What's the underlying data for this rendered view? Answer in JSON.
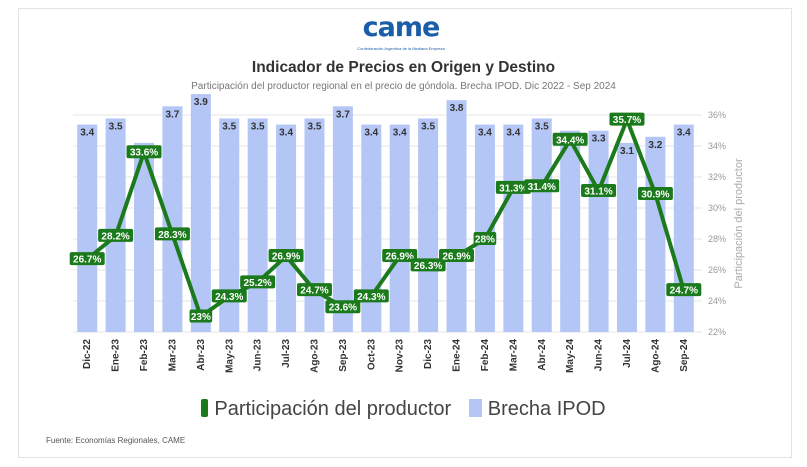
{
  "logo": {
    "text": "came",
    "subtext": "Confederación Argentina de la Mediana Empresa"
  },
  "header": {
    "title": "Indicador de Precios en Origen y Destino",
    "subtitle": "Participación del productor regional en el precio de góndola. Brecha IPOD. Dic 2022 - Sep 2024"
  },
  "legend": {
    "line_label": "Participación del productor",
    "bar_label": "Brecha IPOD"
  },
  "footer": {
    "source": "Fuente: Economías Regionales, CAME"
  },
  "colors": {
    "bar": "#b3c6f5",
    "line": "#1b7a1b",
    "label_bg": "#1b7a1b",
    "label_text": "#ffffff"
  },
  "chart_data": {
    "type": "bar+line",
    "categories": [
      "Dic-22",
      "Ene-23",
      "Feb-23",
      "Mar-23",
      "Abr-23",
      "May-23",
      "Jun-23",
      "Jul-23",
      "Ago-23",
      "Sep-23",
      "Oct-23",
      "Nov-23",
      "Dic-23",
      "Ene-24",
      "Feb-24",
      "Mar-24",
      "Abr-24",
      "May-24",
      "Jun-24",
      "Jul-24",
      "Ago-24",
      "Sep-24"
    ],
    "series": [
      {
        "name": "Brecha IPOD",
        "type": "bar",
        "axis": "left",
        "values": [
          3.4,
          3.5,
          3.1,
          3.7,
          3.9,
          3.5,
          3.5,
          3.4,
          3.5,
          3.7,
          3.4,
          3.4,
          3.5,
          3.8,
          3.4,
          3.4,
          3.5,
          3.3,
          3.3,
          3.1,
          3.2,
          3.4
        ],
        "labels": [
          "3.4",
          "3.5",
          "3.1",
          "3.7",
          "3.9",
          "3.5",
          "3.5",
          "3.4",
          "3.5",
          "3.7",
          "3.4",
          "3.4",
          "3.5",
          "3.8",
          "3.4",
          "3.4",
          "3.5",
          "3.3",
          "3.3",
          "3.1",
          "3.2",
          "3.4"
        ]
      },
      {
        "name": "Participación del productor",
        "type": "line",
        "axis": "right",
        "values": [
          26.7,
          28.2,
          33.6,
          28.3,
          23.0,
          24.3,
          25.2,
          26.9,
          24.7,
          23.6,
          24.3,
          26.9,
          26.3,
          26.9,
          28.0,
          31.3,
          31.4,
          34.4,
          31.1,
          35.7,
          30.9,
          24.7
        ],
        "labels": [
          "26.7%",
          "28.2%",
          "33.6%",
          "28.3%",
          "23%",
          "24.3%",
          "25.2%",
          "26.9%",
          "24.7%",
          "23.6%",
          "24.3%",
          "26.9%",
          "26.3%",
          "26.9%",
          "28%",
          "31.3%",
          "31.4%",
          "34.4%",
          "31.1%",
          "35.7%",
          "30.9%",
          "24.7%"
        ]
      }
    ],
    "bar_axis_range": [
      0,
      4
    ],
    "y2_range": [
      22,
      36
    ],
    "y2_ticks": [
      "22%",
      "24%",
      "26%",
      "28%",
      "30%",
      "32%",
      "34%",
      "36%"
    ],
    "y2label": "Participación del productor",
    "grid": true,
    "legend_position": "bottom"
  }
}
